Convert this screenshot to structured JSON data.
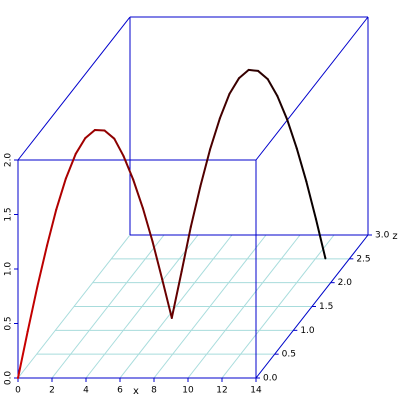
{
  "chart_data": {
    "type": "line3d",
    "x_label": "x",
    "z_label": "z",
    "xlim": [
      0,
      14
    ],
    "ylim": [
      0,
      2
    ],
    "zlim": [
      0,
      3
    ],
    "xticks": [
      0,
      2,
      4,
      6,
      8,
      10,
      12,
      14
    ],
    "yticks": [
      {
        "value": 0,
        "label": "0.0"
      },
      0.5,
      {
        "value": 1,
        "label": "1.0"
      },
      1.5,
      {
        "value": 2,
        "label": "2.0"
      }
    ],
    "zticks": [
      {
        "value": 0,
        "label": "0.0"
      },
      0.5,
      {
        "value": 1,
        "label": "1.0"
      },
      1.5,
      {
        "value": 2,
        "label": "2.0"
      },
      2.5,
      {
        "value": 3,
        "label": "3.0"
      }
    ],
    "grid": true,
    "box_color": "#0000cc",
    "grid_color": "#a8dcdc",
    "line_colors": [
      "#cc0000",
      "#000000"
    ],
    "x": [
      0,
      0.39,
      0.79,
      1.18,
      1.57,
      1.96,
      2.36,
      2.75,
      3.14,
      3.53,
      3.93,
      4.32,
      4.71,
      5.11,
      5.5,
      5.89,
      6.28,
      6.68,
      7.07,
      7.46,
      7.85,
      8.25,
      8.64,
      9.03,
      9.42,
      9.82,
      10.21,
      10.6,
      11.0,
      11.39,
      11.78,
      12.17,
      12.57
    ],
    "y": [
      0,
      0.39,
      0.77,
      1.11,
      1.41,
      1.66,
      1.85,
      1.96,
      2.0,
      1.96,
      1.85,
      1.66,
      1.41,
      1.11,
      0.77,
      0.39,
      0,
      0.39,
      0.77,
      1.11,
      1.41,
      1.66,
      1.85,
      1.96,
      2.0,
      1.96,
      1.85,
      1.66,
      1.41,
      1.11,
      0.77,
      0.39,
      0
    ],
    "z": [
      0,
      0.08,
      0.16,
      0.24,
      0.31,
      0.39,
      0.47,
      0.55,
      0.63,
      0.71,
      0.79,
      0.86,
      0.94,
      1.02,
      1.1,
      1.18,
      1.26,
      1.34,
      1.41,
      1.49,
      1.57,
      1.65,
      1.73,
      1.81,
      1.89,
      1.96,
      2.04,
      2.12,
      2.2,
      2.28,
      2.36,
      2.44,
      2.51
    ]
  }
}
